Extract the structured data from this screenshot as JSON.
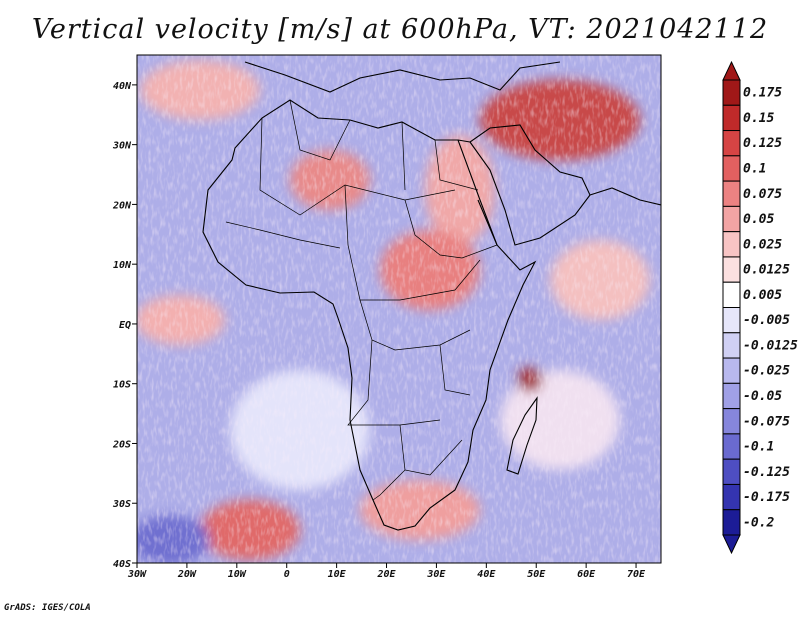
{
  "title": "Vertical velocity [m/s] at 600hPa, VT: 2021042112",
  "credit": "GrADS: IGES/COLA",
  "map": {
    "lon_range": [
      -30,
      75
    ],
    "lat_range": [
      -40,
      45
    ],
    "lon_ticks": [
      {
        "value": -30,
        "label": "30W"
      },
      {
        "value": -20,
        "label": "20W"
      },
      {
        "value": -10,
        "label": "10W"
      },
      {
        "value": 0,
        "label": "0"
      },
      {
        "value": 10,
        "label": "10E"
      },
      {
        "value": 20,
        "label": "20E"
      },
      {
        "value": 30,
        "label": "30E"
      },
      {
        "value": 40,
        "label": "40E"
      },
      {
        "value": 50,
        "label": "50E"
      },
      {
        "value": 60,
        "label": "60E"
      },
      {
        "value": 70,
        "label": "70E"
      }
    ],
    "lat_ticks": [
      {
        "value": 40,
        "label": "40N"
      },
      {
        "value": 30,
        "label": "30N"
      },
      {
        "value": 20,
        "label": "20N"
      },
      {
        "value": 10,
        "label": "10N"
      },
      {
        "value": 0,
        "label": "EQ"
      },
      {
        "value": -10,
        "label": "10S"
      },
      {
        "value": -20,
        "label": "20S"
      },
      {
        "value": -30,
        "label": "30S"
      },
      {
        "value": -40,
        "label": "40S"
      }
    ],
    "regions": "Africa, Arabian Peninsula, Madagascar, southern Europe"
  },
  "colorbar": {
    "units": "m/s",
    "levels": [
      {
        "label": "0.175",
        "color": "#a01818"
      },
      {
        "label": "0.15",
        "color": "#c02a2a"
      },
      {
        "label": "0.125",
        "color": "#d64444"
      },
      {
        "label": "0.1",
        "color": "#e26060"
      },
      {
        "label": "0.075",
        "color": "#ec8282"
      },
      {
        "label": "0.05",
        "color": "#f3a4a4"
      },
      {
        "label": "0.025",
        "color": "#f8c4c4"
      },
      {
        "label": "0.0125",
        "color": "#fce0e0"
      },
      {
        "label": "0.005",
        "color": "#ffffff"
      },
      {
        "label": "-0.005",
        "color": "#e6e6fa"
      },
      {
        "label": "-0.0125",
        "color": "#d0d0f4"
      },
      {
        "label": "-0.025",
        "color": "#b8b8ee"
      },
      {
        "label": "-0.05",
        "color": "#a0a0e6"
      },
      {
        "label": "-0.075",
        "color": "#8686dc"
      },
      {
        "label": "-0.1",
        "color": "#6a6ad0"
      },
      {
        "label": "-0.125",
        "color": "#4e4ec2"
      },
      {
        "label": "-0.175",
        "color": "#3434b0"
      },
      {
        "label": "-0.2",
        "color": "#1c1c96"
      }
    ]
  }
}
